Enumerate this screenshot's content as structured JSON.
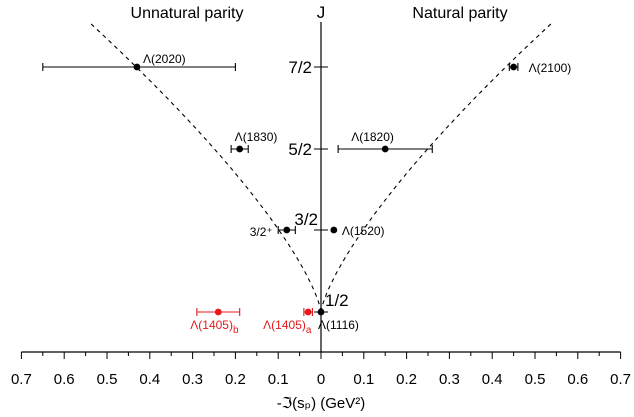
{
  "chart_data": {
    "type": "scatter",
    "xlabel": "-ℑ(sₚ) (GeV²)",
    "center_label": "J",
    "left_title": "Unnatural parity",
    "right_title": "Natural parity",
    "xlim": [
      -0.7,
      0.7
    ],
    "x_tick_labels": [
      "0.7",
      "0.6",
      "0.5",
      "0.4",
      "0.3",
      "0.2",
      "0.1",
      "0",
      "0.1",
      "0.2",
      "0.3",
      "0.4",
      "0.5",
      "0.6",
      "0.7"
    ],
    "j_levels": [
      {
        "label": "1/2",
        "j": 0.5
      },
      {
        "label": "3/2",
        "j": 1.5
      },
      {
        "label": "5/2",
        "j": 2.5
      },
      {
        "label": "7/2",
        "j": 3.5
      }
    ],
    "extra_label": "3/2⁺",
    "points": [
      {
        "label": "Λ(2020)",
        "x": -0.43,
        "j": 3.5,
        "xerr": [
          0.22,
          0.23
        ],
        "color": "#000000"
      },
      {
        "label": "Λ(1830)",
        "x": -0.19,
        "j": 2.5,
        "xerr": [
          0.02,
          0.02
        ],
        "color": "#000000"
      },
      {
        "label": "",
        "x": -0.08,
        "j": 1.5,
        "xerr": [
          0.02,
          0.02
        ],
        "color": "#000000"
      },
      {
        "label": "Λ(1116)",
        "x": 0.0,
        "j": 0.5,
        "xerr": [
          0,
          0
        ],
        "color": "#000000"
      },
      {
        "label": "Λ(1520)",
        "x": 0.03,
        "j": 1.5,
        "xerr": [
          0,
          0
        ],
        "color": "#000000"
      },
      {
        "label": "Λ(1820)",
        "x": 0.15,
        "j": 2.5,
        "xerr": [
          0.11,
          0.11
        ],
        "color": "#000000"
      },
      {
        "label": "Λ(2100)",
        "x": 0.45,
        "j": 3.5,
        "xerr": [
          0.01,
          0.01
        ],
        "color": "#000000"
      },
      {
        "label": "Λ(1405)",
        "sub": "b",
        "x": -0.24,
        "j": 0.5,
        "xerr": [
          0.05,
          0.05
        ],
        "color": "#e31a1c"
      },
      {
        "label": "Λ(1405)",
        "sub": "a",
        "x": -0.03,
        "j": 0.5,
        "xerr": [
          0.01,
          0.01
        ],
        "color": "#e31a1c"
      }
    ],
    "trajectories": "dashed"
  }
}
